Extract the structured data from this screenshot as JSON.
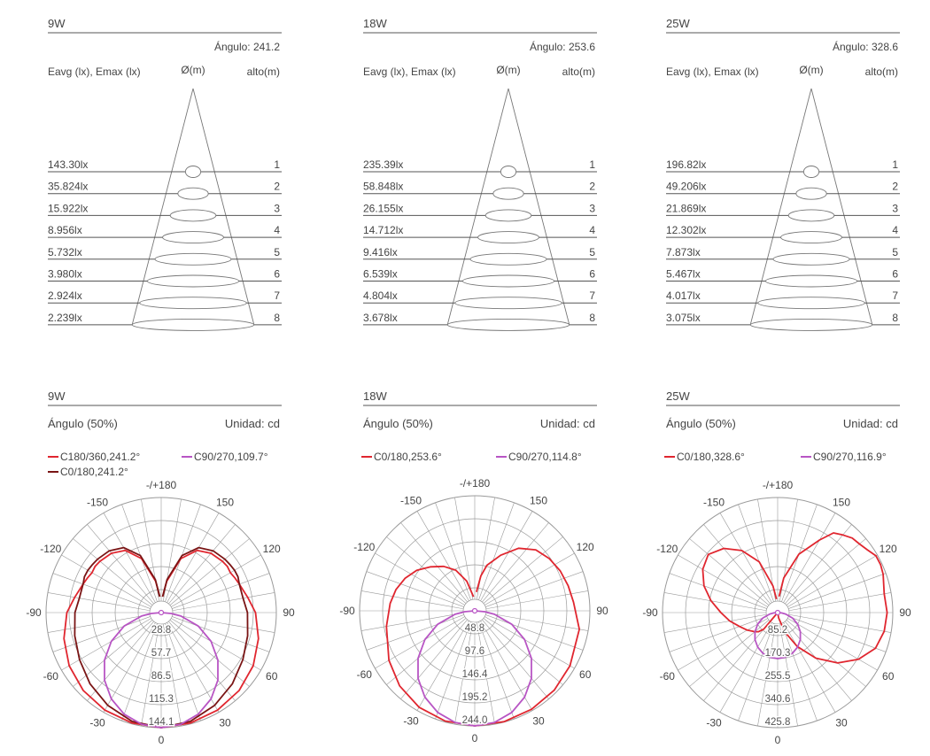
{
  "colors": {
    "text": "#444444",
    "rule": "#555555",
    "grid": "#9a9a9a",
    "red": "#e0262f",
    "dark_red": "#7a1515",
    "violet": "#b855c4"
  },
  "cone_panels": [
    {
      "power": "9W",
      "angle_label": "Ángulo: 241.2",
      "col_eavg": "Eavg (lx), Emax (lx)",
      "col_diam": "Ø(m)",
      "col_height": "alto(m)",
      "rows": [
        {
          "lux": "143.30lx",
          "height": "1"
        },
        {
          "lux": "35.824lx",
          "height": "2"
        },
        {
          "lux": "15.922lx",
          "height": "3"
        },
        {
          "lux": "8.956lx",
          "height": "4"
        },
        {
          "lux": "5.732lx",
          "height": "5"
        },
        {
          "lux": "3.980lx",
          "height": "6"
        },
        {
          "lux": "2.924lx",
          "height": "7"
        },
        {
          "lux": "2.239lx",
          "height": "8"
        }
      ]
    },
    {
      "power": "18W",
      "angle_label": "Ángulo: 253.6",
      "col_eavg": "Eavg (lx), Emax (lx)",
      "col_diam": "Ø(m)",
      "col_height": "alto(m)",
      "rows": [
        {
          "lux": "235.39lx",
          "height": "1"
        },
        {
          "lux": "58.848lx",
          "height": "2"
        },
        {
          "lux": "26.155lx",
          "height": "3"
        },
        {
          "lux": "14.712lx",
          "height": "4"
        },
        {
          "lux": "9.416lx",
          "height": "5"
        },
        {
          "lux": "6.539lx",
          "height": "6"
        },
        {
          "lux": "4.804lx",
          "height": "7"
        },
        {
          "lux": "3.678lx",
          "height": "8"
        }
      ]
    },
    {
      "power": "25W",
      "angle_label": "Ángulo: 328.6",
      "col_eavg": "Eavg (lx), Emax (lx)",
      "col_diam": "Ø(m)",
      "col_height": "alto(m)",
      "rows": [
        {
          "lux": "196.82lx",
          "height": "1"
        },
        {
          "lux": "49.206lx",
          "height": "2"
        },
        {
          "lux": "21.869lx",
          "height": "3"
        },
        {
          "lux": "12.302lx",
          "height": "4"
        },
        {
          "lux": "7.873lx",
          "height": "5"
        },
        {
          "lux": "5.467lx",
          "height": "6"
        },
        {
          "lux": "4.017lx",
          "height": "7"
        },
        {
          "lux": "3.075lx",
          "height": "8"
        }
      ]
    }
  ],
  "chart_data": [
    {
      "type": "polar",
      "title": "9W",
      "subtitle_left": "Ángulo (50%)",
      "subtitle_right": "Unidad: cd",
      "angle_tick_labels": [
        "-/+180",
        "150",
        "120",
        "90",
        "60",
        "30",
        "0",
        "-30",
        "-60",
        "-90",
        "-120",
        "-150"
      ],
      "radial_ticks": [
        "28.8",
        "57.7",
        "86.5",
        "115.3",
        "144.1"
      ],
      "rmax": 144.1,
      "series": [
        {
          "name": "C180/360,241.2°",
          "color": "#e0262f",
          "angles": [
            0,
            15,
            30,
            45,
            60,
            75,
            90,
            100,
            110,
            115,
            120,
            125,
            130,
            140,
            150,
            160,
            170,
            175
          ],
          "values": [
            144.1,
            143,
            141,
            138,
            133,
            126,
            118,
            110,
            104,
            102,
            100,
            101,
            100,
            97,
            90,
            72,
            40,
            20
          ],
          "mirror": true
        },
        {
          "name": "C0/180,241.2°",
          "color": "#7a1515",
          "angles": [
            0,
            15,
            30,
            45,
            60,
            75,
            90,
            100,
            110,
            115,
            120,
            125,
            130,
            140,
            150,
            160,
            170,
            175
          ],
          "values": [
            144.1,
            141,
            134,
            126,
            118,
            112,
            108,
            104,
            104,
            106,
            106,
            105,
            104,
            101,
            94,
            76,
            42,
            20
          ],
          "mirror": true
        },
        {
          "name": "C90/270,109.7°",
          "color": "#b855c4",
          "angles": [
            0,
            10,
            20,
            30,
            40,
            50,
            60,
            70,
            80,
            85,
            90
          ],
          "values": [
            144.1,
            141.9,
            135.4,
            124.8,
            110.4,
            92.6,
            72.1,
            49.3,
            25,
            12.6,
            0
          ],
          "mirror": true
        }
      ]
    },
    {
      "type": "polar",
      "title": "18W",
      "subtitle_left": "Ángulo (50%)",
      "subtitle_right": "Unidad: cd",
      "angle_tick_labels": [
        "-/+180",
        "150",
        "120",
        "90",
        "60",
        "30",
        "0",
        "-30",
        "-60",
        "-90",
        "-120",
        "-150"
      ],
      "radial_ticks": [
        "48.8",
        "97.6",
        "146.4",
        "195.2",
        "244.0"
      ],
      "rmax": 244.0,
      "series": [
        {
          "name": "C0/180,253.6°",
          "color": "#e0262f",
          "angles": [
            -175,
            -165,
            -155,
            -145,
            -135,
            -125,
            -115,
            -105,
            -95,
            -80,
            -60,
            -45,
            -30,
            -15,
            0,
            15,
            30,
            45,
            60,
            80,
            95,
            105,
            115,
            125,
            135,
            145,
            155,
            165,
            170,
            175
          ],
          "values": [
            30,
            65,
            95,
            115,
            132,
            150,
            163,
            173,
            180,
            190,
            210,
            225,
            236,
            242,
            244,
            243,
            241,
            238,
            233,
            225,
            210,
            205,
            200,
            193,
            183,
            162,
            130,
            100,
            75,
            40
          ]
        },
        {
          "name": "C90/270,114.8°",
          "color": "#b855c4",
          "angles": [
            0,
            10,
            20,
            30,
            40,
            50,
            60,
            70,
            80,
            85,
            90
          ],
          "values": [
            244.0,
            240.3,
            229.3,
            211.3,
            186.9,
            156.8,
            122.0,
            83.5,
            42.4,
            21.3,
            0
          ],
          "mirror": true
        }
      ]
    },
    {
      "type": "polar",
      "title": "25W",
      "subtitle_left": "Ángulo (50%)",
      "subtitle_right": "Unidad: cd",
      "angle_tick_labels": [
        "-/+180",
        "150",
        "120",
        "90",
        "60",
        "30",
        "0",
        "-30",
        "-60",
        "-90",
        "-120",
        "-150"
      ],
      "radial_ticks": [
        "85.2",
        "170.3",
        "255.5",
        "340.6",
        "425.8"
      ],
      "rmax": 425.8,
      "series": [
        {
          "name": "C0/180,328.6°",
          "color": "#e0262f",
          "angles": [
            -175,
            -170,
            -160,
            -150,
            -140,
            -130,
            -120,
            -110,
            -100,
            -90,
            -80,
            -70,
            -60,
            -50,
            -45,
            -40,
            0,
            10,
            20,
            30,
            40,
            50,
            60,
            70,
            80,
            90,
            100,
            110,
            115,
            120,
            125,
            130,
            135,
            140,
            145,
            150,
            160,
            170,
            175
          ],
          "values": [
            50,
            100,
            200,
            265,
            310,
            335,
            320,
            290,
            250,
            210,
            180,
            150,
            130,
            110,
            100,
            80,
            0,
            20,
            75,
            145,
            220,
            290,
            345,
            385,
            400,
            405,
            400,
            415,
            420,
            420,
            405,
            395,
            390,
            375,
            360,
            310,
            230,
            130,
            60
          ]
        },
        {
          "name": "C90/270,116.9°",
          "color": "#b855c4",
          "angles": [
            0,
            10,
            20,
            30,
            40,
            50,
            60,
            70,
            80,
            85,
            90
          ],
          "values": [
            170.3,
            167.7,
            160.1,
            147.5,
            130.5,
            109.5,
            85.2,
            58.3,
            29.6,
            14.8,
            0
          ],
          "mirror": true
        }
      ]
    }
  ]
}
